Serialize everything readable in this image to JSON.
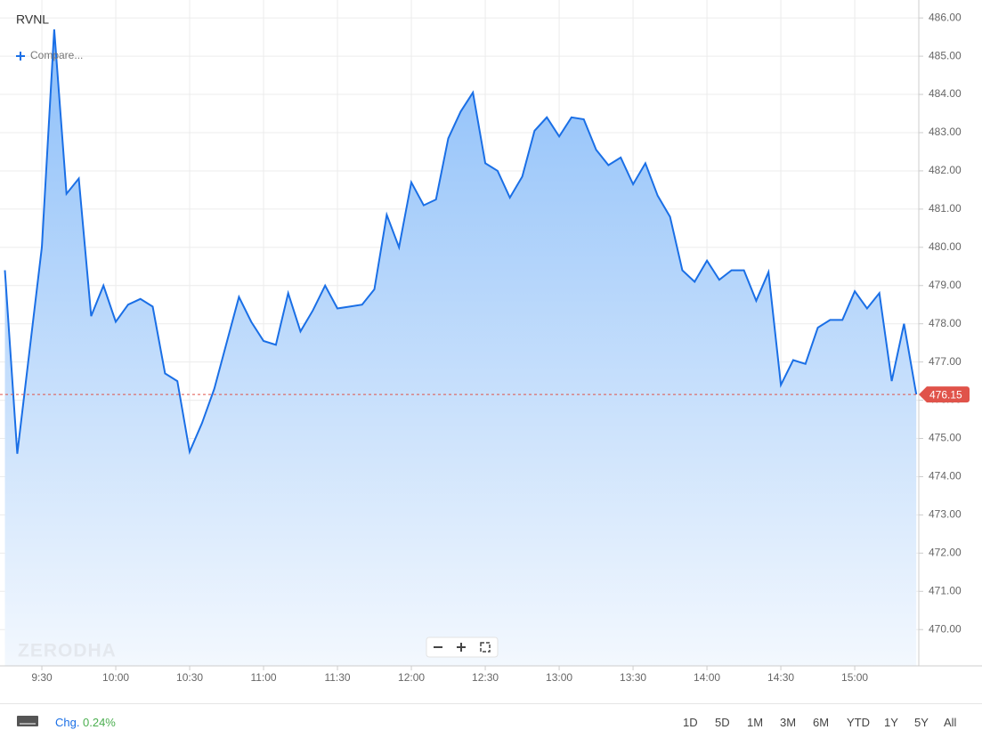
{
  "chart_data": {
    "type": "area",
    "title": "RVNL",
    "x": [
      555,
      560,
      565,
      570,
      575,
      580,
      585,
      590,
      595,
      600,
      605,
      610,
      615,
      620,
      625,
      630,
      635,
      640,
      645,
      650,
      655,
      660,
      665,
      670,
      675,
      680,
      685,
      690,
      695,
      700,
      705,
      710,
      715,
      720,
      725,
      730,
      735,
      740,
      745,
      750,
      755,
      760,
      765,
      770,
      775,
      780,
      785,
      790,
      795,
      800,
      805,
      810,
      815,
      820,
      825,
      830,
      835,
      840,
      845,
      850,
      855,
      860,
      865,
      870,
      875,
      880,
      885,
      890,
      895,
      900,
      905,
      910,
      915,
      920,
      925
    ],
    "series": [
      {
        "name": "RVNL",
        "color": "#1a6fe6",
        "values": [
          479.4,
          474.6,
          477.3,
          480,
          485.7,
          481.4,
          481.8,
          478.2,
          479,
          478.05,
          478.5,
          478.65,
          478.45,
          476.7,
          476.5,
          474.65,
          475.4,
          476.3,
          477.5,
          478.7,
          478.05,
          477.55,
          477.45,
          478.8,
          477.8,
          478.35,
          479,
          478.4,
          478.45,
          478.5,
          478.9,
          480.85,
          480,
          481.7,
          481.1,
          481.25,
          482.85,
          483.55,
          484.05,
          482.2,
          482,
          481.3,
          481.85,
          483.05,
          483.4,
          482.9,
          483.4,
          483.35,
          482.55,
          482.15,
          482.35,
          481.65,
          482.2,
          481.35,
          480.8,
          479.4,
          479.1,
          479.65,
          479.15,
          479.4,
          479.4,
          478.6,
          479.35,
          476.4,
          477.05,
          476.95,
          477.9,
          478.1,
          478.1,
          478.85,
          478.4,
          478.8,
          476.5,
          478,
          476.15
        ]
      }
    ],
    "last_price": {
      "value": 476.15,
      "label": "476.15"
    },
    "xlim": [
      553,
      926
    ],
    "xticks": [
      {
        "value": 570,
        "label": "9:30"
      },
      {
        "value": 600,
        "label": "10:00"
      },
      {
        "value": 630,
        "label": "10:30"
      },
      {
        "value": 660,
        "label": "11:00"
      },
      {
        "value": 690,
        "label": "11:30"
      },
      {
        "value": 720,
        "label": "12:00"
      },
      {
        "value": 750,
        "label": "12:30"
      },
      {
        "value": 780,
        "label": "13:00"
      },
      {
        "value": 810,
        "label": "13:30"
      },
      {
        "value": 840,
        "label": "14:00"
      },
      {
        "value": 870,
        "label": "14:30"
      },
      {
        "value": 900,
        "label": "15:00"
      }
    ],
    "ylim": [
      469.05,
      486.47
    ],
    "yticks": [
      {
        "value": 470,
        "label": "470.00"
      },
      {
        "value": 471,
        "label": "471.00"
      },
      {
        "value": 472,
        "label": "472.00"
      },
      {
        "value": 473,
        "label": "473.00"
      },
      {
        "value": 474,
        "label": "474.00"
      },
      {
        "value": 475,
        "label": "475.00"
      },
      {
        "value": 476,
        "label": "476.00"
      },
      {
        "value": 477,
        "label": "477.00"
      },
      {
        "value": 478,
        "label": "478.00"
      },
      {
        "value": 479,
        "label": "479.00"
      },
      {
        "value": 480,
        "label": "480.00"
      },
      {
        "value": 481,
        "label": "481.00"
      },
      {
        "value": 482,
        "label": "482.00"
      },
      {
        "value": 483,
        "label": "483.00"
      },
      {
        "value": 484,
        "label": "484.00"
      },
      {
        "value": 485,
        "label": "485.00"
      },
      {
        "value": 486,
        "label": "486.00"
      }
    ],
    "grid": true
  },
  "ui": {
    "compare": "Compare...",
    "watermark": "ZERODHA",
    "change_label": "Chg.",
    "change": "0.24%",
    "ranges": [
      "1D",
      "5D",
      "1M",
      "3M",
      "6M",
      "YTD",
      "1Y",
      "5Y",
      "All"
    ]
  }
}
